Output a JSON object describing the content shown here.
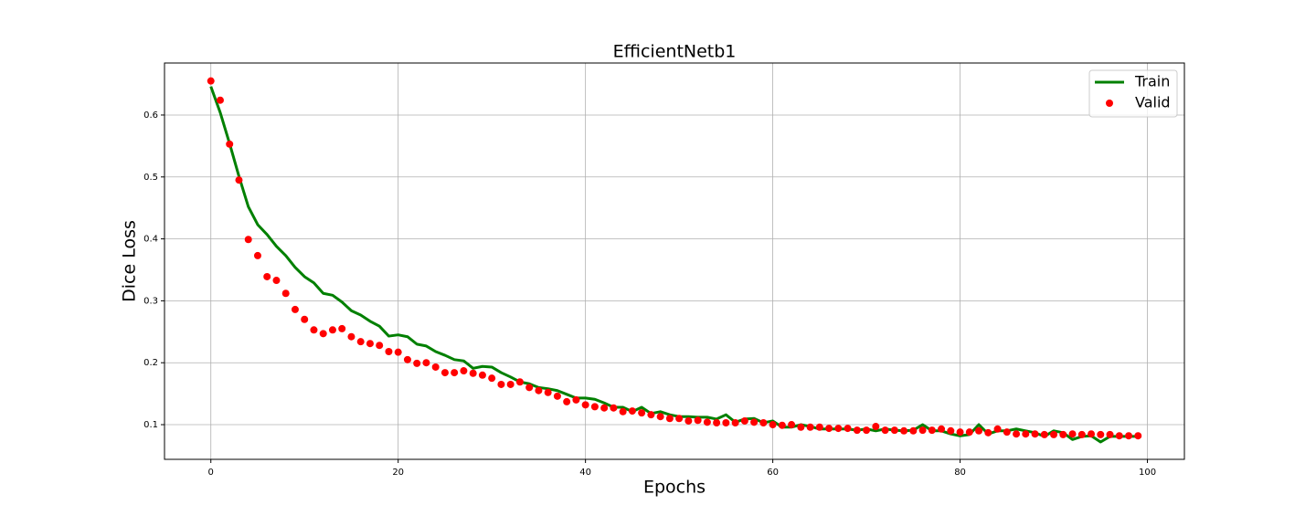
{
  "chart_data": {
    "type": "line",
    "title": "EfficientNetb1",
    "x_label": "Epochs",
    "y_label": "Dice Loss",
    "x": [
      0,
      1,
      2,
      3,
      4,
      5,
      6,
      7,
      8,
      9,
      10,
      11,
      12,
      13,
      14,
      15,
      16,
      17,
      18,
      19,
      20,
      21,
      22,
      23,
      24,
      25,
      26,
      27,
      28,
      29,
      30,
      31,
      32,
      33,
      34,
      35,
      36,
      37,
      38,
      39,
      40,
      41,
      42,
      43,
      44,
      45,
      46,
      47,
      48,
      49,
      50,
      51,
      52,
      53,
      54,
      55,
      56,
      57,
      58,
      59,
      60,
      61,
      62,
      63,
      64,
      65,
      66,
      67,
      68,
      69,
      70,
      71,
      72,
      73,
      74,
      75,
      76,
      77,
      78,
      79,
      80,
      81,
      82,
      83,
      84,
      85,
      86,
      87,
      88,
      89,
      90,
      91,
      92,
      93,
      94,
      95,
      96,
      97,
      98,
      99
    ],
    "series": [
      {
        "name": "Train",
        "color": "#008000",
        "style": "line",
        "values": [
          0.646,
          0.604,
          0.554,
          0.501,
          0.452,
          0.423,
          0.407,
          0.388,
          0.373,
          0.354,
          0.339,
          0.329,
          0.312,
          0.309,
          0.298,
          0.284,
          0.277,
          0.267,
          0.259,
          0.243,
          0.245,
          0.242,
          0.23,
          0.227,
          0.218,
          0.212,
          0.205,
          0.203,
          0.191,
          0.194,
          0.193,
          0.184,
          0.177,
          0.169,
          0.166,
          0.16,
          0.158,
          0.155,
          0.149,
          0.143,
          0.143,
          0.141,
          0.135,
          0.128,
          0.128,
          0.121,
          0.128,
          0.118,
          0.121,
          0.116,
          0.113,
          0.113,
          0.112,
          0.112,
          0.109,
          0.116,
          0.104,
          0.109,
          0.11,
          0.103,
          0.106,
          0.096,
          0.096,
          0.1,
          0.097,
          0.093,
          0.093,
          0.093,
          0.093,
          0.091,
          0.093,
          0.09,
          0.093,
          0.091,
          0.09,
          0.091,
          0.1,
          0.09,
          0.09,
          0.085,
          0.082,
          0.084,
          0.1,
          0.085,
          0.09,
          0.09,
          0.093,
          0.09,
          0.087,
          0.081,
          0.09,
          0.087,
          0.076,
          0.081,
          0.082,
          0.072,
          0.081,
          0.081,
          0.081,
          0.081
        ]
      },
      {
        "name": "Valid",
        "color": "#ff0000",
        "style": "points",
        "values": [
          0.655,
          0.624,
          0.553,
          0.495,
          0.399,
          0.373,
          0.339,
          0.333,
          0.312,
          0.286,
          0.27,
          0.253,
          0.247,
          0.253,
          0.255,
          0.242,
          0.234,
          0.231,
          0.228,
          0.218,
          0.217,
          0.205,
          0.199,
          0.2,
          0.193,
          0.184,
          0.184,
          0.187,
          0.183,
          0.18,
          0.175,
          0.165,
          0.165,
          0.169,
          0.16,
          0.155,
          0.152,
          0.146,
          0.137,
          0.14,
          0.132,
          0.129,
          0.127,
          0.127,
          0.121,
          0.122,
          0.119,
          0.116,
          0.113,
          0.11,
          0.11,
          0.106,
          0.107,
          0.104,
          0.103,
          0.103,
          0.103,
          0.106,
          0.104,
          0.103,
          0.1,
          0.099,
          0.1,
          0.096,
          0.096,
          0.096,
          0.094,
          0.094,
          0.094,
          0.091,
          0.091,
          0.097,
          0.091,
          0.091,
          0.09,
          0.09,
          0.091,
          0.091,
          0.093,
          0.09,
          0.088,
          0.088,
          0.09,
          0.087,
          0.093,
          0.088,
          0.085,
          0.085,
          0.085,
          0.084,
          0.084,
          0.084,
          0.085,
          0.084,
          0.085,
          0.084,
          0.084,
          0.082,
          0.082,
          0.082
        ]
      }
    ],
    "xlim": [
      -4.95,
      103.95
    ],
    "ylim": [
      0.044,
      0.684
    ],
    "xticks": [
      0,
      20,
      40,
      60,
      80,
      100
    ],
    "yticks": [
      0.1,
      0.2,
      0.3,
      0.4,
      0.5,
      0.6
    ],
    "grid": true,
    "legend": "upper right"
  }
}
